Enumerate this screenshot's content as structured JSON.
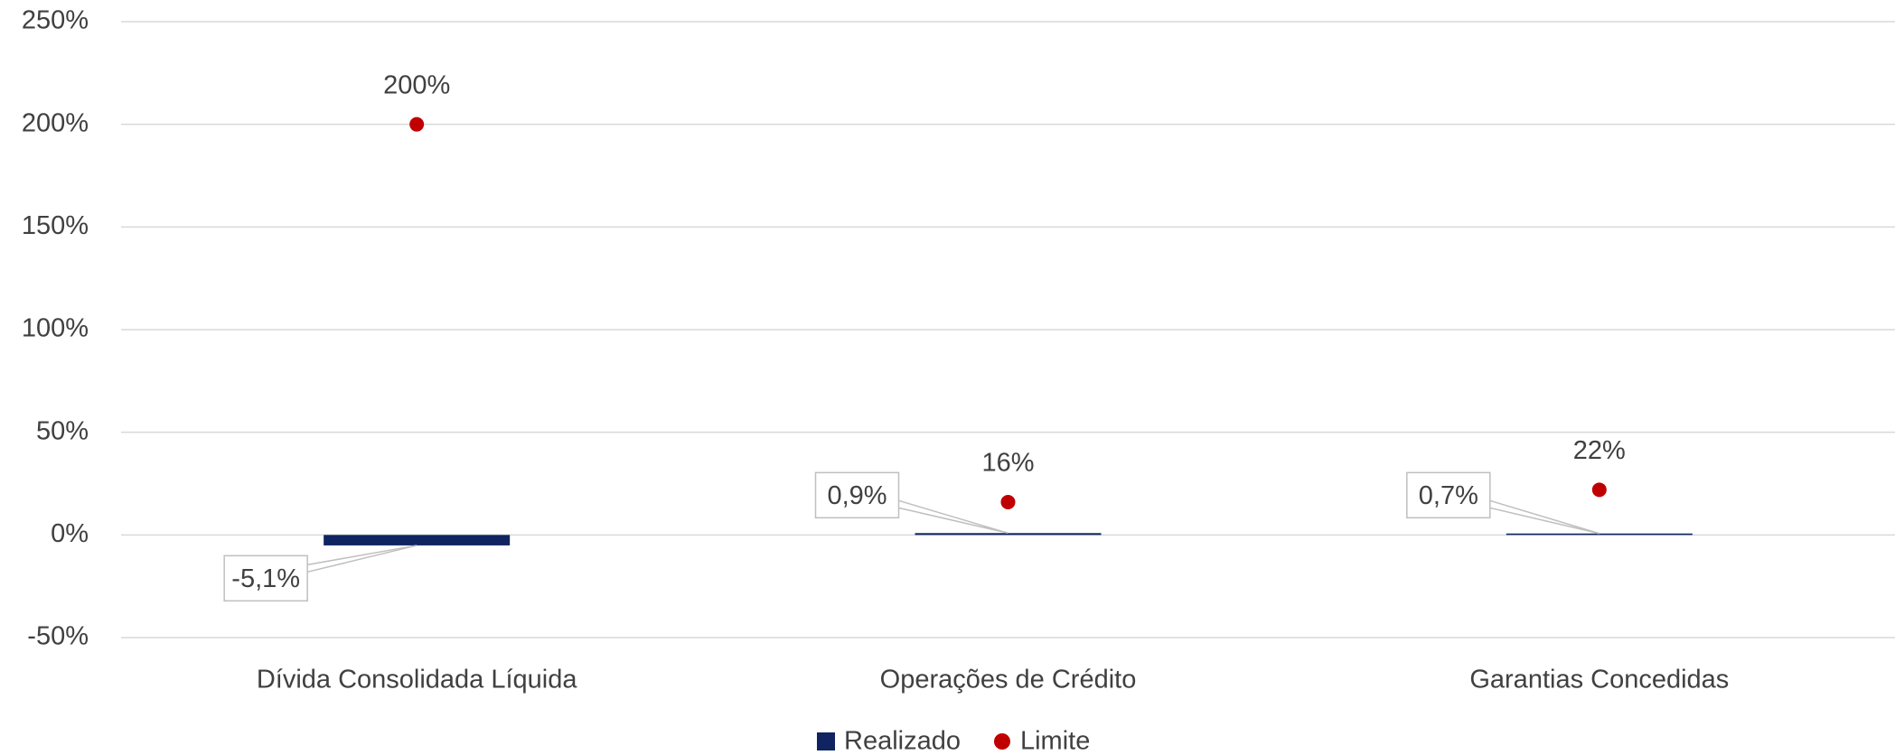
{
  "chart_data": {
    "type": "bar",
    "categories": [
      "Dívida Consolidada Líquida",
      "Operações de Crédito",
      "Garantias Concedidas"
    ],
    "series": [
      {
        "name": "Realizado",
        "type": "bar",
        "color": "#0f2461",
        "values": [
          -5.1,
          0.9,
          0.7
        ],
        "value_labels": [
          "-5,1%",
          "0,9%",
          "0,7%"
        ]
      },
      {
        "name": "Limite",
        "type": "scatter",
        "color": "#c00000",
        "values": [
          200,
          16,
          22
        ],
        "value_labels": [
          "200%",
          "16%",
          "22%"
        ]
      }
    ],
    "ylim": [
      -50,
      250
    ],
    "yticks": [
      {
        "value": -50,
        "label": "-50%"
      },
      {
        "value": 0,
        "label": "0%"
      },
      {
        "value": 50,
        "label": "50%"
      },
      {
        "value": 100,
        "label": "100%"
      },
      {
        "value": 150,
        "label": "150%"
      },
      {
        "value": 200,
        "label": "200%"
      },
      {
        "value": 250,
        "label": "250%"
      }
    ],
    "grid": true,
    "legend": "bottom"
  }
}
